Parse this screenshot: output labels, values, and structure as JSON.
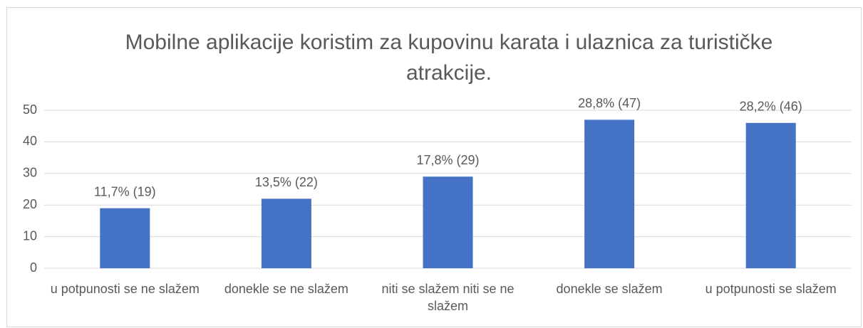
{
  "chart_data": {
    "type": "bar",
    "title": "Mobilne aplikacije koristim za kupovinu karata i ulaznica za turističke atrakcije.",
    "categories": [
      "u potpunosti se ne slažem",
      "donekle se ne slažem",
      "niti se slažem niti se ne slažem",
      "donekle se slažem",
      "u potpunosti se slažem"
    ],
    "values": [
      19,
      22,
      29,
      47,
      46
    ],
    "value_labels": [
      "11,7% (19)",
      "13,5% (22)",
      "17,8% (29)",
      "28,8% (47)",
      "28,2% (46)"
    ],
    "color": "#4472c4",
    "ylim": [
      0,
      50
    ],
    "yticks": [
      0,
      10,
      20,
      30,
      40,
      50
    ],
    "grid": true
  }
}
